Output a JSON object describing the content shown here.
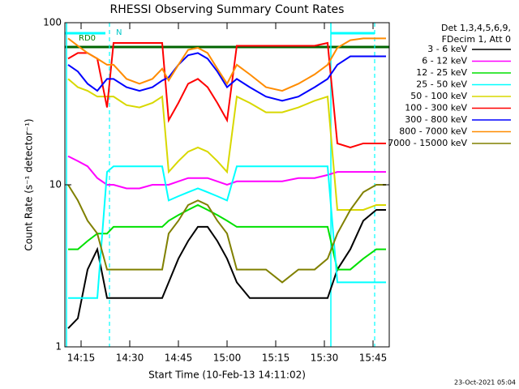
{
  "chart_data": {
    "type": "line",
    "title": "RHESSI Observing Summary Count Rates",
    "x_label": "Start Time (10-Feb-13 14:11:02)",
    "y_label": "Count Rate (s⁻¹ detector⁻¹)",
    "legend_header": [
      "Det 1,3,4,5,6,9,",
      "FDecim 1, Att 0"
    ],
    "annotations": [
      "RD0",
      "N"
    ],
    "footer": "23-Oct-2021 05:04",
    "log_y": true,
    "xlim": [
      10,
      110
    ],
    "ylim": [
      1,
      100
    ],
    "xticks": [
      {
        "value": 15,
        "label": "14:15"
      },
      {
        "value": 30,
        "label": "14:30"
      },
      {
        "value": 45,
        "label": "14:45"
      },
      {
        "value": 60,
        "label": "15:00"
      },
      {
        "value": 75,
        "label": "15:15"
      },
      {
        "value": 90,
        "label": "15:30"
      },
      {
        "value": 105,
        "label": "15:45"
      }
    ],
    "yticks": [
      1,
      10,
      100
    ],
    "vlines": [
      10.5,
      92
    ],
    "vlines_dashed": [
      23.75,
      105.5
    ],
    "x": [
      11,
      14,
      17,
      20,
      23,
      25,
      29,
      33,
      37,
      40,
      42,
      45,
      48,
      51,
      54,
      57,
      60,
      63,
      67,
      72,
      77,
      82,
      87,
      91,
      94,
      98,
      102,
      106,
      109
    ],
    "series": [
      {
        "name": "3 - 6 keV",
        "color": "#000000",
        "values": [
          1.3,
          1.5,
          3,
          4,
          2,
          2,
          2,
          2,
          2,
          2,
          2.5,
          3.5,
          4.5,
          5.5,
          5.5,
          4.5,
          3.5,
          2.5,
          2,
          2,
          2,
          2,
          2,
          2,
          3,
          4,
          6,
          7,
          7
        ]
      },
      {
        "name": "6 - 12 keV",
        "color": "#ff00ff",
        "values": [
          15,
          14,
          13,
          11,
          10,
          10,
          9.5,
          9.5,
          10,
          10,
          10,
          10.5,
          11,
          11,
          11,
          10.5,
          10,
          10.5,
          10.5,
          10.5,
          10.5,
          11,
          11,
          11.5,
          12,
          12,
          12,
          12,
          12
        ]
      },
      {
        "name": "12 - 25 keV",
        "color": "#00e000",
        "values": [
          4,
          4,
          4.5,
          5,
          5,
          5.5,
          5.5,
          5.5,
          5.5,
          5.5,
          6,
          6.5,
          7,
          7.5,
          7,
          6.5,
          6,
          5.5,
          5.5,
          5.5,
          5.5,
          5.5,
          5.5,
          5.5,
          3,
          3,
          3.5,
          4,
          4
        ]
      },
      {
        "name": "25 - 50 keV",
        "color": "#00ffff",
        "values": [
          2,
          2,
          2,
          2,
          12,
          13,
          13,
          13,
          13,
          13,
          8,
          8.5,
          9,
          9.5,
          9,
          8.5,
          8,
          13,
          13,
          13,
          13,
          13,
          13,
          13,
          2.5,
          2.5,
          2.5,
          2.5,
          2.5
        ]
      },
      {
        "name": "50 - 100 keV",
        "color": "#d8d800",
        "values": [
          45,
          40,
          38,
          35,
          35,
          35,
          31,
          30,
          32,
          35,
          12,
          14,
          16,
          17,
          16,
          14,
          12,
          35,
          32,
          28,
          28,
          30,
          33,
          35,
          7,
          7,
          7,
          7.5,
          7.5
        ]
      },
      {
        "name": "100 - 300 keV",
        "color": "#ff0000",
        "values": [
          60,
          65,
          65,
          60,
          30,
          75,
          75,
          75,
          75,
          75,
          25,
          32,
          42,
          45,
          40,
          32,
          25,
          72,
          72,
          72,
          72,
          72,
          72,
          75,
          18,
          17,
          18,
          18,
          18
        ]
      },
      {
        "name": "300 - 800 keV",
        "color": "#0000ff",
        "values": [
          55,
          50,
          42,
          38,
          45,
          45,
          40,
          38,
          40,
          44,
          46,
          55,
          63,
          65,
          60,
          50,
          40,
          45,
          40,
          35,
          33,
          35,
          40,
          45,
          55,
          62,
          62,
          62,
          62
        ]
      },
      {
        "name": "800 - 7000 keV",
        "color": "#ff8c00",
        "values": [
          80,
          72,
          65,
          60,
          55,
          55,
          45,
          42,
          45,
          52,
          44,
          55,
          68,
          70,
          65,
          52,
          42,
          55,
          48,
          40,
          38,
          42,
          48,
          55,
          70,
          78,
          80,
          80,
          80
        ]
      },
      {
        "name": "7000 - 15000 keV",
        "color": "#808000",
        "values": [
          10,
          8,
          6,
          5,
          3,
          3,
          3,
          3,
          3,
          3,
          5,
          6,
          7.5,
          8,
          7.5,
          6,
          5,
          3,
          3,
          3,
          2.5,
          3,
          3,
          3.5,
          5,
          7,
          9,
          10,
          10
        ]
      }
    ]
  }
}
